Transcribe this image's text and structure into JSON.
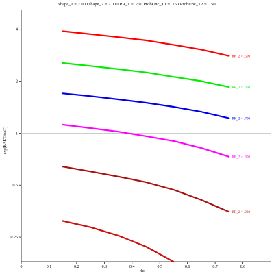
{
  "chart_data": {
    "type": "line",
    "title": "shape_1 = 2.000  shape_2 = 2.000  RR_1 = .700  ProbUnc_T1 = .150  ProbUnc_T2 = .150",
    "xlabel": "rho",
    "ylabel": "exp(EAET/tauT)",
    "xlim": [
      0,
      0.9
    ],
    "ylim": [
      0.18,
      5.2
    ],
    "yscale": "log",
    "reference_line_y": 1,
    "x_ticks": [
      0,
      0.1,
      0.2,
      0.3,
      0.4,
      0.5,
      0.6,
      0.7,
      0.8
    ],
    "x_tick_labels": [
      "0",
      "0.1",
      "0.2",
      "0.3",
      "0.4",
      "0.5",
      "0.6",
      "0.7",
      "0.8"
    ],
    "y_ticks": [
      0.25,
      0.5,
      1,
      2,
      4
    ],
    "y_tick_labels": [
      "0.25",
      "0.5",
      "1",
      "2",
      "4"
    ],
    "series": [
      {
        "name": "RR_2 = .500",
        "color": "#ff0000",
        "x": [
          0.15,
          0.25,
          0.35,
          0.45,
          0.55,
          0.65,
          0.75
        ],
        "y": [
          3.9,
          3.75,
          3.6,
          3.45,
          3.25,
          3.05,
          2.8
        ]
      },
      {
        "name": "RR_2 = .600",
        "color": "#00ee00",
        "x": [
          0.15,
          0.25,
          0.35,
          0.45,
          0.55,
          0.65,
          0.75
        ],
        "y": [
          2.55,
          2.45,
          2.35,
          2.25,
          2.12,
          2.0,
          1.85
        ]
      },
      {
        "name": "RR_2 = .700",
        "color": "#0000ee",
        "x": [
          0.15,
          0.25,
          0.35,
          0.45,
          0.55,
          0.65,
          0.75
        ],
        "y": [
          1.7,
          1.64,
          1.57,
          1.5,
          1.42,
          1.33,
          1.22
        ]
      },
      {
        "name": "RR_2 = .800",
        "color": "#ff00ff",
        "x": [
          0.15,
          0.25,
          0.35,
          0.45,
          0.55,
          0.65,
          0.75
        ],
        "y": [
          1.12,
          1.07,
          1.02,
          0.96,
          0.9,
          0.82,
          0.73
        ]
      },
      {
        "name": "RR_2 = .900",
        "color": "#aa1111",
        "x": [
          0.15,
          0.25,
          0.35,
          0.45,
          0.55,
          0.65,
          0.75
        ],
        "y": [
          0.64,
          0.6,
          0.56,
          0.52,
          0.47,
          0.41,
          0.35
        ]
      },
      {
        "name": "",
        "color": "#cc1111",
        "x": [
          0.15,
          0.25,
          0.35,
          0.45,
          0.55
        ],
        "y": [
          0.31,
          0.285,
          0.255,
          0.22,
          0.18
        ]
      }
    ]
  }
}
